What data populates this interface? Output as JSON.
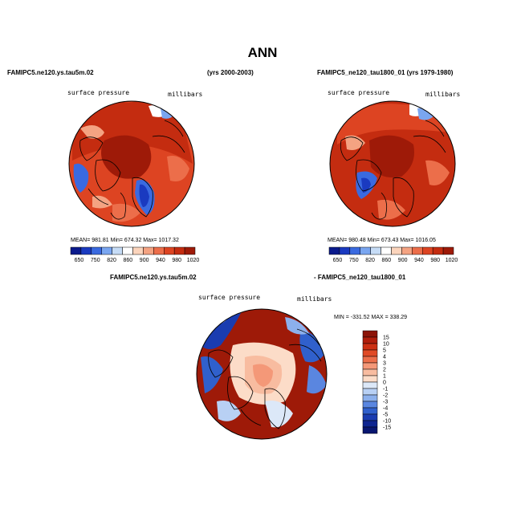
{
  "figure": {
    "title": "ANN"
  },
  "panels": [
    {
      "id": "test",
      "case_name": "FAMIPC5.ne120.ys.tau5m.02",
      "years": "(yrs 2000-2003)",
      "variable": "surface pressure",
      "units": "millibars",
      "stats": "MEAN= 981.81  Min= 674.32  Max= 1017.32"
    },
    {
      "id": "control",
      "case_name": "FAMIPC5_ne120_tau1800_01 (yrs 1979-1980)",
      "variable": "surface pressure",
      "units": "millibars",
      "stats": "MEAN= 980.48  Min= 673.43  Max= 1016.05"
    },
    {
      "id": "difference",
      "case_name_left": "FAMIPC5.ne120.ys.tau5m.02",
      "case_name_right": "- FAMIPC5_ne120_tau1800_01",
      "variable": "surface pressure",
      "units": "millibars",
      "stats": "MIN = -331.52  MAX = 338.29"
    }
  ],
  "chart_data": [
    {
      "type": "heatmap",
      "projection": "polar stereographic (north pole)",
      "title": "surface pressure",
      "units": "millibars",
      "colorbar": {
        "orientation": "horizontal",
        "levels": [
          650,
          750,
          820,
          860,
          900,
          940,
          980,
          1020
        ],
        "colors": [
          "#0a1a8c",
          "#1a3ac0",
          "#3a6ae0",
          "#7aa6f0",
          "#c6dcf6",
          "#ffffff",
          "#fbd4bc",
          "#f4a382",
          "#ec6e4a",
          "#dd4422",
          "#c42c10",
          "#9e1a08"
        ]
      },
      "mean": 981.81,
      "min": 674.32,
      "max": 1017.32
    },
    {
      "type": "heatmap",
      "projection": "polar stereographic (north pole)",
      "title": "surface pressure",
      "units": "millibars",
      "colorbar": {
        "orientation": "horizontal",
        "levels": [
          650,
          750,
          820,
          860,
          900,
          940,
          980,
          1020
        ],
        "colors": [
          "#0a1a8c",
          "#1a3ac0",
          "#3a6ae0",
          "#7aa6f0",
          "#c6dcf6",
          "#ffffff",
          "#fbd4bc",
          "#f4a382",
          "#ec6e4a",
          "#dd4422",
          "#c42c10",
          "#9e1a08"
        ]
      },
      "mean": 980.48,
      "min": 673.43,
      "max": 1016.05
    },
    {
      "type": "heatmap",
      "projection": "polar stereographic (north pole)",
      "title": "surface pressure",
      "units": "millibars",
      "colorbar": {
        "orientation": "vertical",
        "levels": [
          "15",
          "10",
          "5",
          "4",
          "3",
          "2",
          "1",
          "0",
          "-1",
          "-2",
          "-3",
          "-4",
          "-5",
          "-10",
          "-15"
        ],
        "colors": [
          "#8c1408",
          "#b01e0c",
          "#cc3014",
          "#e04a26",
          "#ec6e4a",
          "#f49878",
          "#f8bca0",
          "#fcdcc8",
          "#dce8f8",
          "#b8d0f4",
          "#8cb0ec",
          "#5a86e0",
          "#3060cc",
          "#1a3cb0",
          "#0e2590",
          "#081670"
        ]
      },
      "min": -331.52,
      "max": 338.29
    }
  ]
}
